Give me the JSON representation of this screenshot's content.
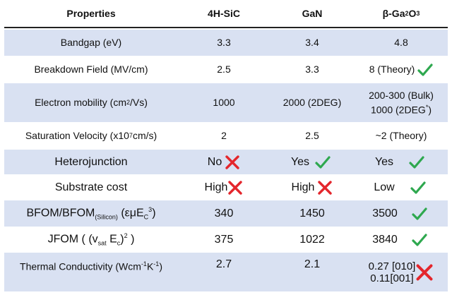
{
  "headers": {
    "prop": "Properties",
    "sic": "4H-SiC",
    "gan": "GaN",
    "gao_beta": "β-Ga",
    "gao_2": "2",
    "gao_o": "O",
    "gao_3": "3"
  },
  "rows": {
    "bandgap": {
      "label": "Bandgap (eV)",
      "sic": "3.3",
      "gan": "3.4",
      "gao": "4.8"
    },
    "breakdown": {
      "label": "Breakdown Field (MV/cm)",
      "sic": "2.5",
      "gan": "3.3",
      "gao": "8 (Theory)"
    },
    "mobility": {
      "label_a": "Electron mobility (cm",
      "label_sup": "2",
      "label_b": "/Vs)",
      "sic": "1000",
      "gan": "2000 (2DEG)",
      "gao_l1": "200-300 (Bulk)",
      "gao_l2": "1000 (2DEG",
      "gao_l2_sup": "*",
      "gao_l2_end": ")"
    },
    "saturation": {
      "label_a": "Saturation Velocity (x10",
      "label_sup": "7",
      "label_b": " cm/s)",
      "sic": "2",
      "gan": "2.5",
      "gao": "~2 (Theory)"
    },
    "hetero": {
      "label": "Heterojunction",
      "sic": "No",
      "gan": "Yes",
      "gao": "Yes"
    },
    "substrate": {
      "label": "Substrate cost",
      "sic": "High",
      "gan": "High",
      "gao": "Low"
    },
    "bfom": {
      "label_a": "BFOM/BFOM",
      "label_sub": "(Silicon)",
      "label_b": " (εμE",
      "label_sub2": "C",
      "label_sup": "3",
      "label_c": ")",
      "sic": "340",
      "gan": "1450",
      "gao": "3500"
    },
    "jfom": {
      "label_a": "JFOM ( (v",
      "label_sub": "sat",
      "label_b": " E",
      "label_sub2": "c",
      "label_c": ")",
      "label_sup": "2",
      "label_d": " )",
      "sic": "375",
      "gan": "1022",
      "gao": "3840"
    },
    "thermal": {
      "label_a": "Thermal Conductivity (Wcm",
      "label_sup1": "-1",
      "label_b": "K",
      "label_sup2": "-1",
      "label_c": ")",
      "sic": "2.7",
      "gan": "2.1",
      "gao_l1": "0.27 [010]",
      "gao_l2": "0.11[001]"
    }
  },
  "colors": {
    "check": "#2ea84f",
    "cross": "#e4262c",
    "shade": "#d9e1f2"
  },
  "icons": {
    "check": "check-icon",
    "cross": "cross-icon"
  }
}
